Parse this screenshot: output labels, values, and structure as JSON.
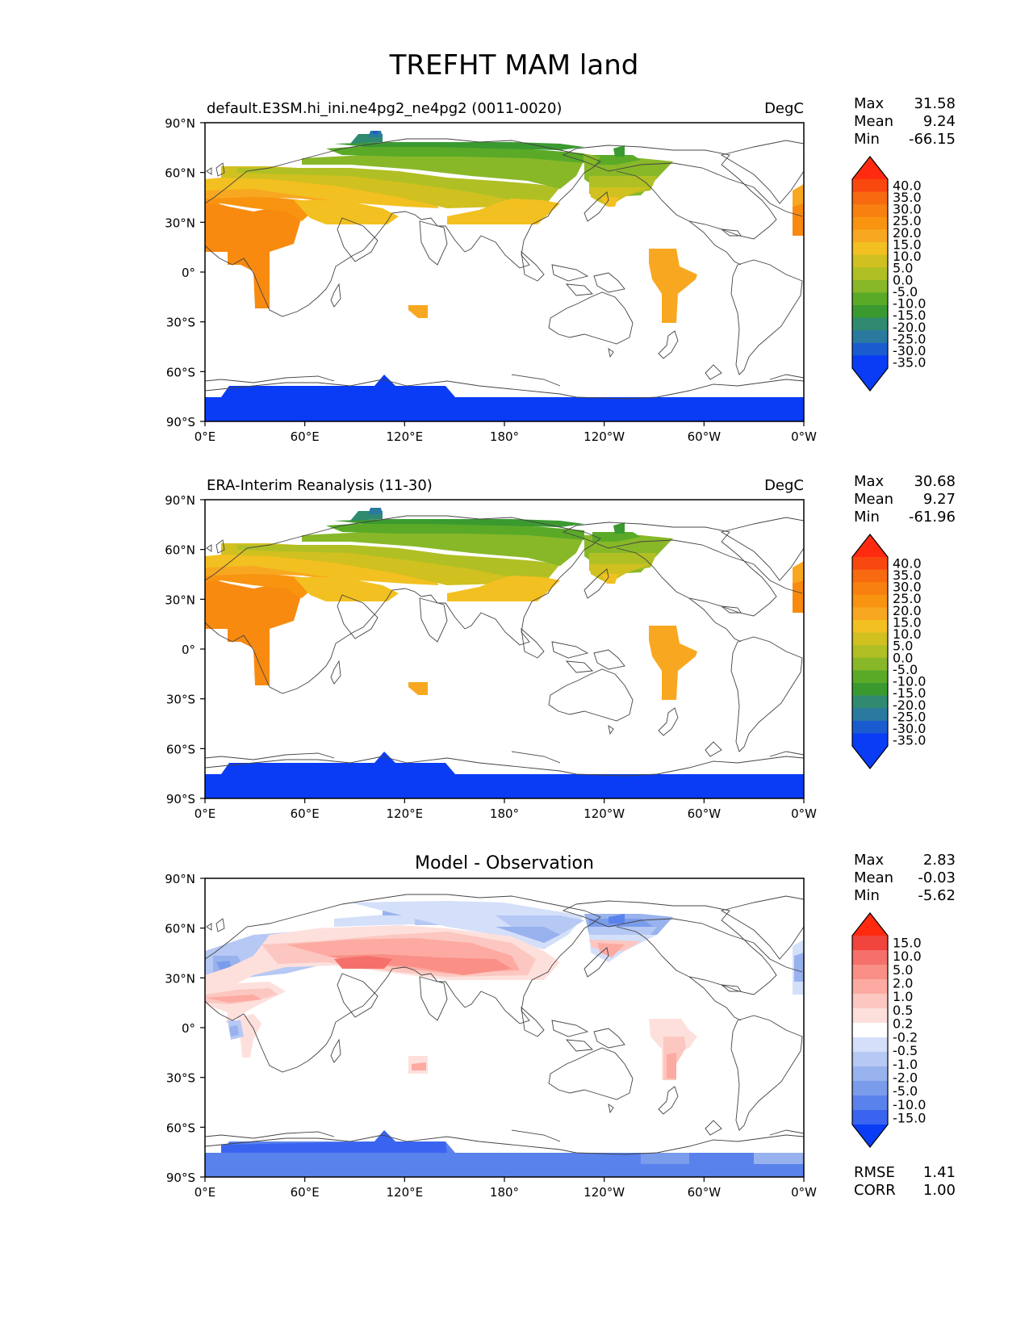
{
  "title": "TREFHT MAM land",
  "lat_ticks": [
    "90°N",
    "60°N",
    "30°N",
    "0°",
    "30°S",
    "60°S",
    "90°S"
  ],
  "lon_ticks": [
    "0°E",
    "60°E",
    "120°E",
    "180°",
    "120°W",
    "60°W",
    "0°W"
  ],
  "stat_labels": {
    "max": "Max",
    "mean": "Mean",
    "min": "Min",
    "rmse": "RMSE",
    "corr": "CORR"
  },
  "colors": {
    "main_levels": [
      "#0a3cf5",
      "#0a3cf5",
      "#1a5cd0",
      "#2a7aa0",
      "#2f8a70",
      "#3a9a30",
      "#5aaa28",
      "#88b828",
      "#b0c024",
      "#d0c020",
      "#f2c020",
      "#f8a820",
      "#f89410",
      "#f88010",
      "#f86a10",
      "#f84810",
      "#ff2a10"
    ],
    "diff_levels": [
      "#0a3cf5",
      "#3a64f0",
      "#5a82ec",
      "#7a9cea",
      "#98b2ee",
      "#b6c8f4",
      "#d4dff9",
      "#ffffff",
      "#fde0dc",
      "#fcc7c0",
      "#fcaaa2",
      "#f98f86",
      "#f5706a",
      "#f0443c",
      "#ff2a10"
    ]
  },
  "chart_data": [
    {
      "type": "heatmap",
      "left_title": "default.E3SM.hi_ini.ne4pg2_ne4pg2 (0011-0020)",
      "right_title": "DegC",
      "stats": {
        "max": "31.58",
        "mean": "9.24",
        "min": "-66.15"
      },
      "colorbar_labels": [
        "40.0",
        "35.0",
        "30.0",
        "25.0",
        "20.0",
        "15.0",
        "10.0",
        "5.0",
        "0.0",
        "-5.0",
        "-10.0",
        "-15.0",
        "-20.0",
        "-25.0",
        "-30.0",
        "-35.0"
      ],
      "xlim": [
        0,
        360
      ],
      "ylim": [
        -90,
        90
      ]
    },
    {
      "type": "heatmap",
      "left_title": "ERA-Interim Reanalysis (11-30)",
      "right_title": "DegC",
      "stats": {
        "max": "30.68",
        "mean": "9.27",
        "min": "-61.96"
      },
      "colorbar_labels": [
        "40.0",
        "35.0",
        "30.0",
        "25.0",
        "20.0",
        "15.0",
        "10.0",
        "5.0",
        "0.0",
        "-5.0",
        "-10.0",
        "-15.0",
        "-20.0",
        "-25.0",
        "-30.0",
        "-35.0"
      ],
      "xlim": [
        0,
        360
      ],
      "ylim": [
        -90,
        90
      ]
    },
    {
      "type": "heatmap",
      "center_title": "Model - Observation",
      "stats": {
        "max": "2.83",
        "mean": "-0.03",
        "min": "-5.62",
        "rmse": "1.41",
        "corr": "1.00"
      },
      "colorbar_labels": [
        "15.0",
        "10.0",
        "5.0",
        "2.0",
        "1.0",
        "0.5",
        "0.2",
        "-0.2",
        "-0.5",
        "-1.0",
        "-2.0",
        "-5.0",
        "-10.0",
        "-15.0"
      ],
      "xlim": [
        0,
        360
      ],
      "ylim": [
        -90,
        90
      ]
    }
  ]
}
